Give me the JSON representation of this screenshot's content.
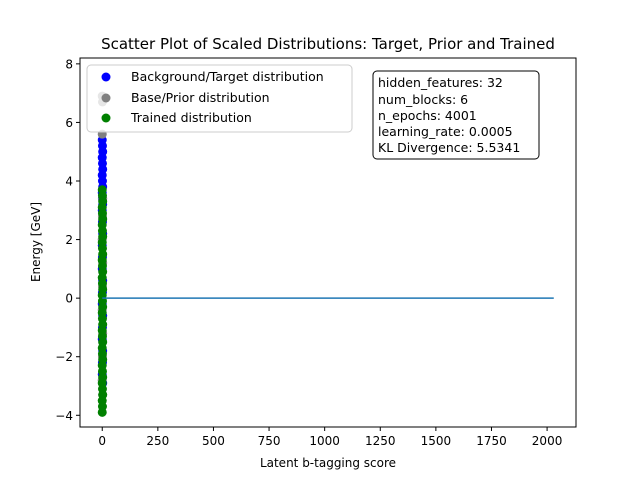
{
  "chart_data": {
    "type": "scatter",
    "title": "Scatter Plot of Scaled Distributions: Target, Prior and Trained",
    "xlabel": "Latent b-tagging score",
    "ylabel": "Energy [GeV]",
    "xlim": [
      -100,
      2130
    ],
    "ylim": [
      -4.4,
      8.2
    ],
    "xticks": [
      0,
      250,
      500,
      750,
      1000,
      1250,
      1500,
      1750,
      2000
    ],
    "yticks": [
      -4,
      -2,
      0,
      2,
      4,
      6,
      8
    ],
    "grid": false,
    "legend_placement": "top-left",
    "info_box_placement": "top-right",
    "series": [
      {
        "name": "Background/Target distribution",
        "color": "#0000ff",
        "points": [
          [
            0,
            5.4
          ],
          [
            1,
            5.2
          ],
          [
            2,
            5.0
          ],
          [
            0,
            4.8
          ],
          [
            1,
            4.6
          ],
          [
            2,
            4.4
          ],
          [
            0,
            4.2
          ],
          [
            1,
            4.0
          ],
          [
            2,
            3.8
          ],
          [
            0,
            3.6
          ],
          [
            1,
            3.4
          ],
          [
            2,
            3.2
          ],
          [
            0,
            3.0
          ],
          [
            1,
            2.6
          ],
          [
            2,
            2.2
          ],
          [
            0,
            1.8
          ],
          [
            1,
            1.4
          ],
          [
            0,
            1.0
          ],
          [
            2,
            0.6
          ],
          [
            1,
            0.2
          ],
          [
            0,
            -0.2
          ],
          [
            2,
            -0.6
          ],
          [
            1,
            -1.0
          ],
          [
            0,
            -1.4
          ],
          [
            2,
            -1.8
          ],
          [
            1,
            -2.2
          ],
          [
            0,
            -2.6
          ],
          [
            2,
            -2.9
          ]
        ]
      },
      {
        "name": "Base/Prior distribution",
        "color": "#808080",
        "points": [
          [
            0,
            6.9
          ],
          [
            1,
            6.7
          ],
          [
            0,
            5.6
          ],
          [
            2,
            3.4
          ],
          [
            1,
            2.8
          ],
          [
            0,
            2.0
          ],
          [
            2,
            1.2
          ],
          [
            1,
            0.4
          ],
          [
            0,
            -0.4
          ],
          [
            2,
            -1.2
          ],
          [
            1,
            -2.0
          ],
          [
            0,
            -2.8
          ],
          [
            2,
            -3.3
          ]
        ]
      },
      {
        "name": "Trained distribution",
        "color": "#008000",
        "points": [
          [
            0,
            3.7
          ],
          [
            1,
            3.5
          ],
          [
            2,
            3.3
          ],
          [
            0,
            3.1
          ],
          [
            1,
            2.9
          ],
          [
            2,
            2.7
          ],
          [
            0,
            2.5
          ],
          [
            1,
            2.3
          ],
          [
            2,
            2.1
          ],
          [
            0,
            1.9
          ],
          [
            1,
            1.7
          ],
          [
            2,
            1.5
          ],
          [
            0,
            1.3
          ],
          [
            1,
            1.1
          ],
          [
            2,
            0.9
          ],
          [
            0,
            0.7
          ],
          [
            1,
            0.5
          ],
          [
            2,
            0.3
          ],
          [
            0,
            0.1
          ],
          [
            1,
            -0.1
          ],
          [
            2,
            -0.3
          ],
          [
            0,
            -0.5
          ],
          [
            1,
            -0.7
          ],
          [
            2,
            -0.9
          ],
          [
            0,
            -1.1
          ],
          [
            1,
            -1.3
          ],
          [
            2,
            -1.5
          ],
          [
            0,
            -1.7
          ],
          [
            1,
            -1.9
          ],
          [
            2,
            -2.1
          ],
          [
            0,
            -2.3
          ],
          [
            1,
            -2.5
          ],
          [
            2,
            -2.7
          ],
          [
            0,
            -2.9
          ],
          [
            1,
            -3.1
          ],
          [
            2,
            -3.3
          ],
          [
            0,
            -3.5
          ],
          [
            1,
            -3.7
          ],
          [
            0,
            -3.9
          ]
        ]
      }
    ],
    "lines": [
      {
        "color": "#1f77b4",
        "points": [
          [
            0,
            0
          ],
          [
            2030,
            0
          ]
        ]
      }
    ]
  },
  "info_box": {
    "lines": [
      "hidden_features: 32",
      "num_blocks: 6",
      "n_epochs: 4001",
      "learning_rate: 0.0005",
      "KL Divergence: 5.5341"
    ]
  }
}
